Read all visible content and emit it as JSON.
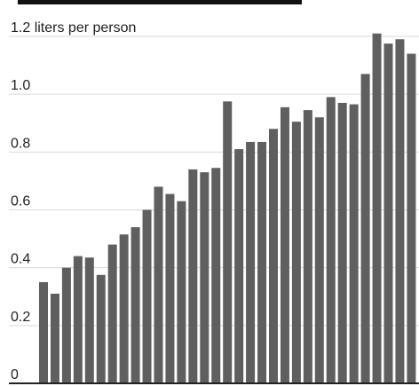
{
  "chart_data": {
    "type": "bar",
    "title": "",
    "xlabel": "",
    "ylabel": "",
    "y_tick_labels": [
      "0",
      "0.2",
      "0.4",
      "0.6",
      "0.8",
      "1.0",
      "1.2 liters per person"
    ],
    "y_ticks": [
      0,
      0.2,
      0.4,
      0.6,
      0.8,
      1.0,
      1.2
    ],
    "ylim": [
      0,
      1.2
    ],
    "grid": true,
    "legend": "none",
    "values": [
      0.35,
      0.31,
      0.4,
      0.44,
      0.435,
      0.375,
      0.48,
      0.515,
      0.54,
      0.6,
      0.68,
      0.655,
      0.63,
      0.74,
      0.73,
      0.745,
      0.975,
      0.81,
      0.835,
      0.835,
      0.88,
      0.955,
      0.905,
      0.945,
      0.92,
      0.99,
      0.97,
      0.965,
      1.07,
      1.21,
      1.175,
      1.19,
      1.14
    ],
    "colors": {
      "bar": "#5f5f5f",
      "grid": "#d9d9d9",
      "axis": "#222222",
      "text": "#222222"
    }
  }
}
